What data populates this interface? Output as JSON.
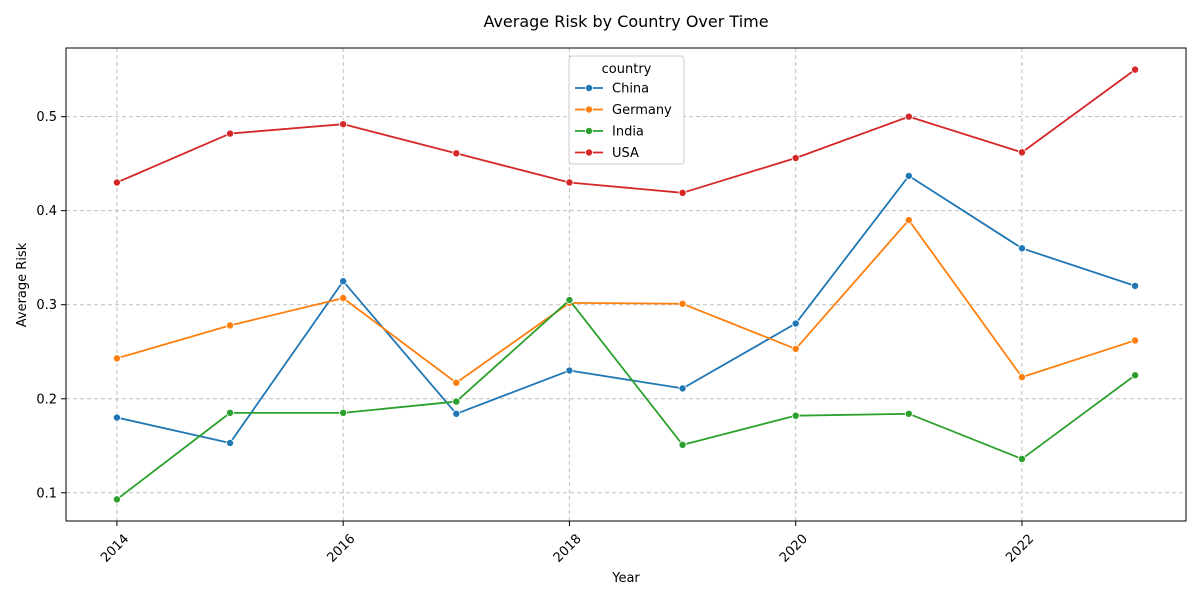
{
  "chart_data": {
    "type": "line",
    "title": "Average Risk by Country Over Time",
    "xlabel": "Year",
    "ylabel": "Average Risk",
    "x": [
      2014,
      2015,
      2016,
      2017,
      2018,
      2019,
      2020,
      2021,
      2022,
      2023
    ],
    "x_ticks": [
      "2014",
      "2016",
      "2018",
      "2020",
      "2022"
    ],
    "y_ticks": [
      "0.1",
      "0.2",
      "0.3",
      "0.4",
      "0.5"
    ],
    "xlim": [
      2013.55,
      2023.45
    ],
    "ylim": [
      0.07,
      0.573
    ],
    "grid": true,
    "legend": {
      "title": "country",
      "placement": "top-center"
    },
    "series": [
      {
        "name": "China",
        "color": "#1f77b4",
        "values": [
          0.18,
          0.153,
          0.325,
          0.184,
          0.23,
          0.211,
          0.28,
          0.437,
          0.36,
          0.32
        ]
      },
      {
        "name": "Germany",
        "color": "#ff7f0e",
        "values": [
          0.243,
          0.278,
          0.307,
          0.217,
          0.302,
          0.301,
          0.253,
          0.39,
          0.223,
          0.262
        ]
      },
      {
        "name": "India",
        "color": "#2ca02c",
        "values": [
          0.093,
          0.185,
          0.185,
          0.197,
          0.305,
          0.151,
          0.182,
          0.184,
          0.136,
          0.225
        ]
      },
      {
        "name": "USA",
        "color": "#d62728",
        "values": [
          0.43,
          0.482,
          0.492,
          0.461,
          0.43,
          0.419,
          0.456,
          0.5,
          0.462,
          0.55
        ]
      }
    ]
  }
}
